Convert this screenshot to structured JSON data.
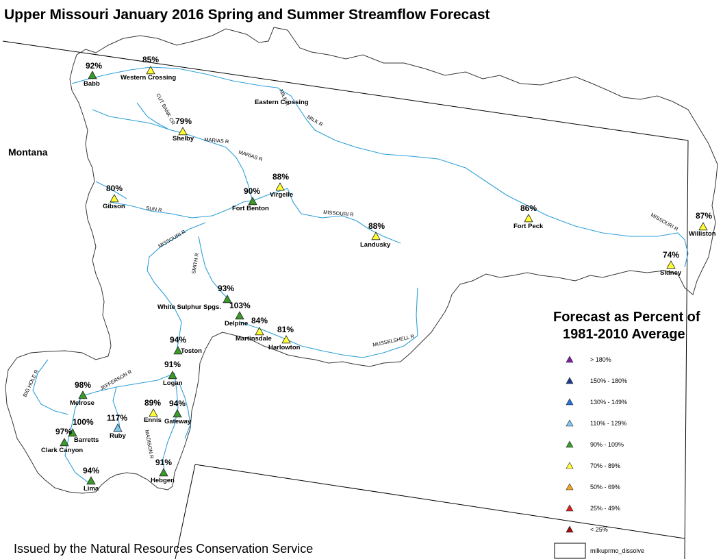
{
  "title": "Upper Missouri January 2016 Spring and Summer Streamflow Forecast",
  "footer": "Issued by the Natural Resources Conservation Service",
  "state_label": "Montana",
  "legend": {
    "title_line1": "Forecast as Percent of",
    "title_line2": "1981-2010 Average",
    "items": [
      {
        "label": "> 180%",
        "color": "#7b1fa2"
      },
      {
        "label": "150% - 180%",
        "color": "#1a3d8f"
      },
      {
        "label": "130% - 149%",
        "color": "#2a6fd6"
      },
      {
        "label": "110% - 129%",
        "color": "#7ec8f0"
      },
      {
        "label": "90% - 109%",
        "color": "#3a9a2a"
      },
      {
        "label": "70% - 89%",
        "color": "#ffff33"
      },
      {
        "label": "50% - 69%",
        "color": "#f5a623"
      },
      {
        "label": "25% - 49%",
        "color": "#e02020"
      },
      {
        "label": "< 25%",
        "color": "#9b1010"
      }
    ],
    "boundary_label": "milkuprmo_dissolve"
  },
  "stations": [
    {
      "name": "Babb",
      "pct": "92%",
      "color": "#3a9a2a"
    },
    {
      "name": "Western Crossing",
      "pct": "85%",
      "color": "#ffff33"
    },
    {
      "name": "Eastern Crossing",
      "pct": "",
      "color": ""
    },
    {
      "name": "Shelby",
      "pct": "79%",
      "color": "#ffff33"
    },
    {
      "name": "Gibson",
      "pct": "80%",
      "color": "#ffff33"
    },
    {
      "name": "Fort Benton",
      "pct": "90%",
      "color": "#3a9a2a"
    },
    {
      "name": "Virgelle",
      "pct": "88%",
      "color": "#ffff33"
    },
    {
      "name": "Landusky",
      "pct": "88%",
      "color": "#ffff33"
    },
    {
      "name": "Fort Peck",
      "pct": "86%",
      "color": "#ffff33"
    },
    {
      "name": "Williston",
      "pct": "87%",
      "color": "#ffff33"
    },
    {
      "name": "Sidney",
      "pct": "74%",
      "color": "#ffff33"
    },
    {
      "name": "White Sulphur Spgs.",
      "pct": "93%",
      "color": "#3a9a2a"
    },
    {
      "name": "Delpine",
      "pct": "103%",
      "color": "#3a9a2a"
    },
    {
      "name": "Martinsdale",
      "pct": "84%",
      "color": "#ffff33"
    },
    {
      "name": "Harlowton",
      "pct": "81%",
      "color": "#ffff33"
    },
    {
      "name": "Toston",
      "pct": "94%",
      "color": "#3a9a2a"
    },
    {
      "name": "Logan",
      "pct": "91%",
      "color": "#3a9a2a"
    },
    {
      "name": "Melrose",
      "pct": "98%",
      "color": "#3a9a2a"
    },
    {
      "name": "Ennis",
      "pct": "89%",
      "color": "#ffff33"
    },
    {
      "name": "Gateway",
      "pct": "94%",
      "color": "#3a9a2a"
    },
    {
      "name": "Barretts",
      "pct": "100%",
      "color": "#3a9a2a"
    },
    {
      "name": "Ruby",
      "pct": "117%",
      "color": "#7ec8f0"
    },
    {
      "name": "Clark Canyon",
      "pct": "97%",
      "color": "#3a9a2a"
    },
    {
      "name": "Lima",
      "pct": "94%",
      "color": "#3a9a2a"
    },
    {
      "name": "Hebgen",
      "pct": "91%",
      "color": "#3a9a2a"
    }
  ],
  "rivers": [
    {
      "label": "CUT BANK CR"
    },
    {
      "label": "MARIAS R"
    },
    {
      "label": "MARIAS R"
    },
    {
      "label": "MILK R"
    },
    {
      "label": "MILK R"
    },
    {
      "label": "SUN R"
    },
    {
      "label": "MISSOURI R"
    },
    {
      "label": "MISSOURI R"
    },
    {
      "label": "SMITH R"
    },
    {
      "label": "MISSOURI R"
    },
    {
      "label": "MUSSELSHELL R"
    },
    {
      "label": "JEFFERSON R"
    },
    {
      "label": "BIG HOLE R"
    },
    {
      "label": "MADISON R"
    }
  ]
}
